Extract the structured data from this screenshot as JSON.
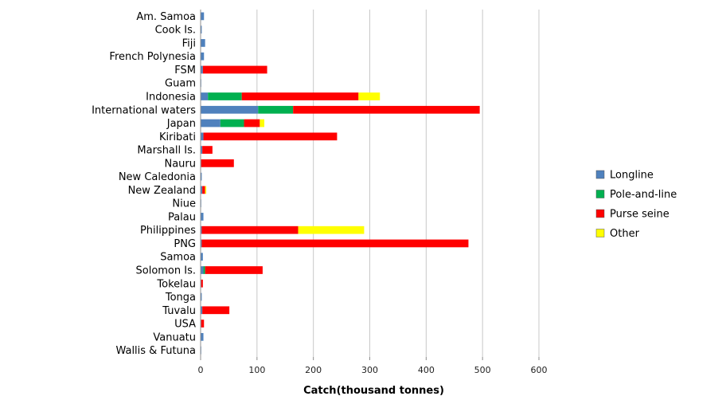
{
  "chart_data": {
    "type": "bar",
    "orientation": "horizontal",
    "stacked": true,
    "title": "",
    "xlabel": "Catch(thousand tonnes)",
    "ylabel": "",
    "xlim": [
      0,
      600
    ],
    "x_ticks": [
      "0",
      "100",
      "200",
      "300",
      "400",
      "500",
      "600"
    ],
    "grid": "vertical",
    "legend_position": "right",
    "categories": [
      "Am. Samoa",
      "Cook Is.",
      "Fiji",
      "French Polynesia",
      "FSM",
      "Guam",
      "Indonesia",
      "International waters",
      "Japan",
      "Kiribati",
      "Marshall Is.",
      "Nauru",
      "New Caledonia",
      "New Zealand",
      "Niue",
      "Palau",
      "Philippines",
      "PNG",
      "Samoa",
      "Solomon Is.",
      "Tokelau",
      "Tonga",
      "Tuvalu",
      "USA",
      "Vanuatu",
      "Wallis & Futuna"
    ],
    "series": [
      {
        "name": "Longline",
        "color": "#4f81bd",
        "values": [
          6,
          2,
          8,
          6,
          4,
          0.5,
          13,
          102,
          35,
          5,
          3,
          1,
          2,
          3,
          1,
          5,
          2,
          2,
          4,
          5,
          1,
          2,
          3,
          1,
          5,
          1
        ]
      },
      {
        "name": "Pole-and-line",
        "color": "#00b050",
        "values": [
          0,
          0,
          0,
          0,
          0,
          0,
          60,
          62,
          42,
          0,
          0,
          0,
          0,
          0,
          0,
          0,
          0,
          0,
          0,
          3,
          0,
          0,
          0,
          0,
          0,
          0
        ]
      },
      {
        "name": "Purse seine",
        "color": "#ff0000",
        "values": [
          0,
          0,
          0,
          0,
          114,
          0,
          207,
          331,
          28,
          237,
          18,
          58,
          0,
          5,
          0,
          0,
          171,
          473,
          0,
          102,
          3,
          0,
          48,
          5,
          0,
          0
        ]
      },
      {
        "name": "Other",
        "color": "#ffff00",
        "values": [
          0,
          0,
          0,
          0,
          0,
          0,
          38,
          0,
          8,
          0,
          0,
          0,
          0,
          2,
          0,
          0,
          117,
          0,
          0,
          0,
          0,
          0,
          0,
          0,
          0,
          0
        ]
      }
    ]
  }
}
